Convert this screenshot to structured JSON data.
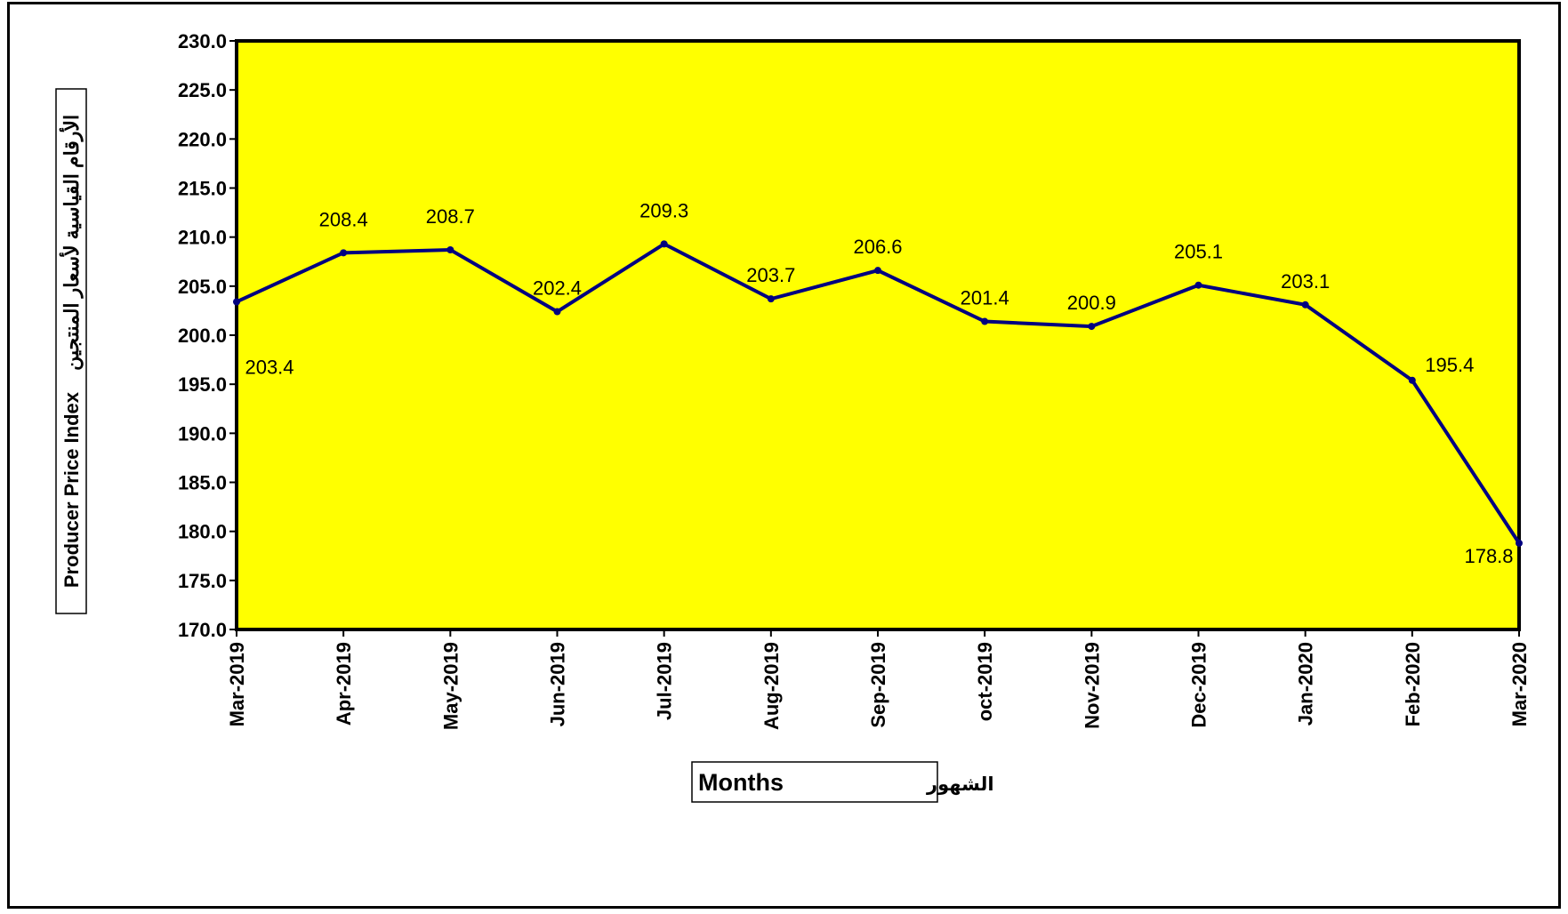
{
  "chart_data": {
    "type": "line",
    "categories": [
      "Mar-2019",
      "Apr-2019",
      "May-2019",
      "Jun-2019",
      "Jul-2019",
      "Aug-2019",
      "Sep-2019",
      "oct-2019",
      "Nov-2019",
      "Dec-2019",
      "Jan-2020",
      "Feb-2020",
      "Mar-2020"
    ],
    "series": [
      {
        "values": [
          203.4,
          208.4,
          208.7,
          202.4,
          209.3,
          203.7,
          206.6,
          201.4,
          200.9,
          205.1,
          203.1,
          195.4,
          178.8
        ]
      }
    ],
    "data_labels": [
      "203.4",
      "208.4",
      "208.7",
      "202.4",
      "209.3",
      "203.7",
      "206.6",
      "201.4",
      "200.9",
      "205.1",
      "203.1",
      "195.4",
      "178.8"
    ],
    "y_ticks": [
      "170.0",
      "175.0",
      "180.0",
      "185.0",
      "190.0",
      "195.0",
      "200.0",
      "205.0",
      "210.0",
      "215.0",
      "220.0",
      "225.0",
      "230.0"
    ],
    "ylim": [
      170,
      230
    ],
    "ylabel_en": "Producer Price Index",
    "ylabel_ar": "الأرقام القياسية لأسعار المنتجين",
    "xlabel_en": "Months",
    "xlabel_ar": "الشهور",
    "grid": false,
    "colors": {
      "plot_background": "#FFFF00",
      "line": "#000080",
      "frame": "#000000"
    }
  }
}
